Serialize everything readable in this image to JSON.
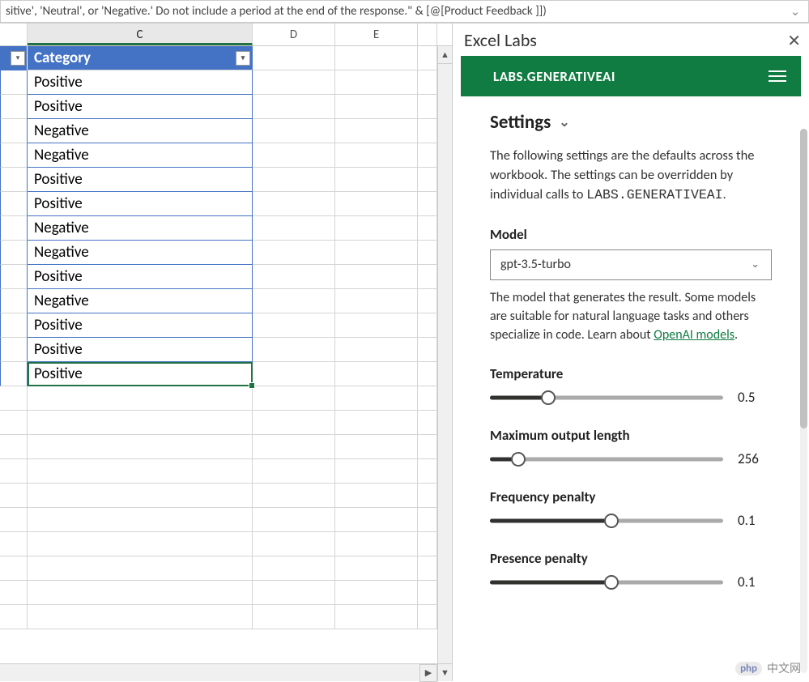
{
  "formula_bar": {
    "text": "sitive', 'Neutral', or 'Negative.' Do not include a period at the end of the response.\" & [@[Product Feedback ]])"
  },
  "column_headers": [
    "C",
    "D",
    "E"
  ],
  "table": {
    "header": "Category",
    "rows": [
      "Positive",
      "Positive",
      "Negative",
      "Negative",
      "Positive",
      "Positive",
      "Negative",
      "Negative",
      "Positive",
      "Negative",
      "Positive",
      "Positive",
      "Positive"
    ],
    "header_bg": "#4472c4",
    "border_color": "#4472c4",
    "selection_color": "#217346"
  },
  "panel": {
    "title": "Excel Labs",
    "header": "LABS.GENERATIVEAI",
    "header_bg": "#107c41",
    "settings_label": "Settings",
    "description_1": "The following settings are the defaults across the workbook. The settings can be overridden by individual calls to ",
    "description_code": "LABS.GENERATIVEAI",
    "model": {
      "label": "Model",
      "value": "gpt-3.5-turbo",
      "hint_1": "The model that generates the result. Some models are suitable for natural language tasks and others specialize in code. Learn about ",
      "hint_link": "OpenAI models"
    },
    "sliders": {
      "temperature": {
        "label": "Temperature",
        "value": "0.5",
        "fill_pct": 25,
        "thumb_pct": 25
      },
      "max_output": {
        "label": "Maximum output length",
        "value": "256",
        "fill_pct": 12,
        "thumb_pct": 12
      },
      "freq_penalty": {
        "label": "Frequency penalty",
        "value": "0.1",
        "fill_pct": 52,
        "thumb_pct": 52
      },
      "pres_penalty": {
        "label": "Presence penalty",
        "value": "0.1",
        "fill_pct": 52,
        "thumb_pct": 52
      }
    }
  },
  "watermark": "中文网"
}
